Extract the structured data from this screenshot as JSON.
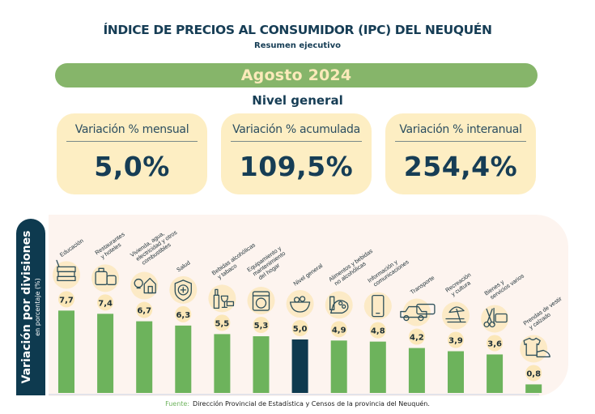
{
  "header": {
    "title": "ÍNDICE DE PRECIOS AL CONSUMIDOR (IPC) DEL NEUQUÉN",
    "subtitle": "Resumen ejecutivo",
    "period": "Agosto 2024",
    "section": "Nivel general"
  },
  "cards": [
    {
      "label": "Variación % mensual",
      "value": "5,0%"
    },
    {
      "label": "Variación % acumulada",
      "value": "109,5%"
    },
    {
      "label": "Variación % interanual",
      "value": "254,4%"
    }
  ],
  "colors": {
    "bar": "#6db35c",
    "highlight_bar": "#0e3a4f",
    "label_bubble": "#fbe7b8",
    "accent_band": "#86b56a",
    "card": "#fdeec3"
  },
  "chart_data": {
    "type": "bar",
    "title": "Variación por divisiones",
    "ylabel": "en porcentaje (%)",
    "xlabel": "",
    "ylim": [
      0,
      8
    ],
    "grid": false,
    "categories": [
      "Educación",
      "Restaurantes y hoteles",
      "Vivienda, agua, electricidad y otros combustibles",
      "Salud",
      "Bebidas alcohólicas y tabaco",
      "Equipamiento y mantenimiento del hogar",
      "Nivel general",
      "Alimentos y bebidas no alcohólicas",
      "Información y comunicaciones",
      "Transporte",
      "Recreación y cultura",
      "Bienes y servicios varios",
      "Prendas de vestir y calzado"
    ],
    "label_lines": [
      [
        "Educación"
      ],
      [
        "Restaurantes",
        "y hoteles"
      ],
      [
        "Vivienda, agua,",
        "electricidad y otros",
        "combustibles"
      ],
      [
        "Salud"
      ],
      [
        "Bebidas alcohólicas",
        "y tabaco"
      ],
      [
        "Equipamiento y",
        "mantenimiento",
        "del hogar"
      ],
      [
        "Nivel general"
      ],
      [
        "Alimentos y bebidas",
        "no alcohólicas"
      ],
      [
        "Información y",
        "comunicaciones"
      ],
      [
        "Transporte"
      ],
      [
        "Recreación",
        "y cultura"
      ],
      [
        "Bienes y",
        "servicios varios"
      ],
      [
        "Prendas de vestir",
        "y calzado"
      ]
    ],
    "values": [
      7.7,
      7.4,
      6.7,
      6.3,
      5.5,
      5.3,
      5.0,
      4.9,
      4.8,
      4.2,
      3.9,
      3.6,
      0.8
    ],
    "value_labels": [
      "7,7",
      "7,4",
      "6,7",
      "6,3",
      "5,5",
      "5,3",
      "5,0",
      "4,9",
      "4,8",
      "4,2",
      "3,9",
      "3,6",
      "0,8"
    ],
    "icons": [
      "books-icon",
      "luggage-icon",
      "house-bulb-icon",
      "shield-cross-icon",
      "bottle-glass-icon",
      "washing-machine-icon",
      "basket-icon",
      "groceries-icon",
      "smartphone-icon",
      "car-bus-icon",
      "beach-umbrella-icon",
      "scissors-card-icon",
      "tshirt-shoe-icon"
    ],
    "highlight_index": 6
  },
  "footer": {
    "source_label": "Fuente:",
    "source_text": "Dirección Provincial de Estadística y Censos de la provincia del Neuquén."
  }
}
